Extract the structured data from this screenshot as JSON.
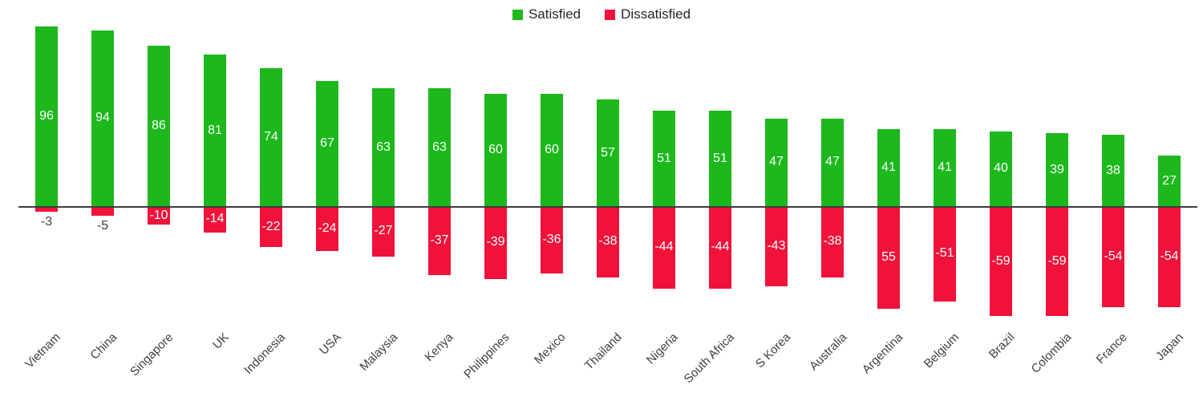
{
  "chart_data": {
    "type": "bar",
    "orientation": "vertical-diverging",
    "title": "",
    "xlabel": "",
    "ylabel": "",
    "categories": [
      "Vietnam",
      "China",
      "Singapore",
      "UK",
      "Indonesia",
      "USA",
      "Malaysia",
      "Kenya",
      "Philippines",
      "Mexico",
      "Thailand",
      "Nigeria",
      "South Africa",
      "S Korea",
      "Australia",
      "Argentina",
      "Belgium",
      "Brazil",
      "Colombia",
      "France",
      "Japan"
    ],
    "series": [
      {
        "name": "Satisfied",
        "color": "#1cb81c",
        "values": [
          96,
          94,
          86,
          81,
          74,
          67,
          63,
          63,
          60,
          60,
          57,
          51,
          51,
          47,
          47,
          41,
          41,
          40,
          39,
          38,
          27
        ],
        "labels": [
          "96",
          "94",
          "86",
          "81",
          "74",
          "67",
          "63",
          "63",
          "60",
          "60",
          "57",
          "51",
          "51",
          "47",
          "47",
          "41",
          "41",
          "40",
          "39",
          "38",
          "27"
        ]
      },
      {
        "name": "Dissatisfied",
        "color": "#f0123a",
        "values": [
          -3,
          -5,
          -10,
          -14,
          -22,
          -24,
          -27,
          -37,
          -39,
          -36,
          -38,
          -44,
          -44,
          -43,
          -38,
          -55,
          -51,
          -59,
          -59,
          -54,
          -54
        ],
        "labels": [
          "-3",
          "-5",
          "-10",
          "-14",
          "-22",
          "-24",
          "-27",
          "-37",
          "-39",
          "-36",
          "-38",
          "-44",
          "-44",
          "-43",
          "-38",
          "55",
          "-51",
          "-59",
          "-59",
          "-54",
          "-54"
        ]
      }
    ],
    "legend": {
      "position": "top-center",
      "entries": [
        {
          "label": "Satisfied",
          "color": "#1cb81c"
        },
        {
          "label": "Dissatisfied",
          "color": "#f0123a"
        }
      ]
    },
    "axis": {
      "baseline_value": 0,
      "ylim": [
        -70,
        100
      ],
      "grid": false,
      "x_tick_rotation": -45
    },
    "colors": {
      "value_label_inside": "#ffffff",
      "value_label_outside": "#404040",
      "category_label": "#404040",
      "axis_line": "#3c3c3c"
    }
  }
}
